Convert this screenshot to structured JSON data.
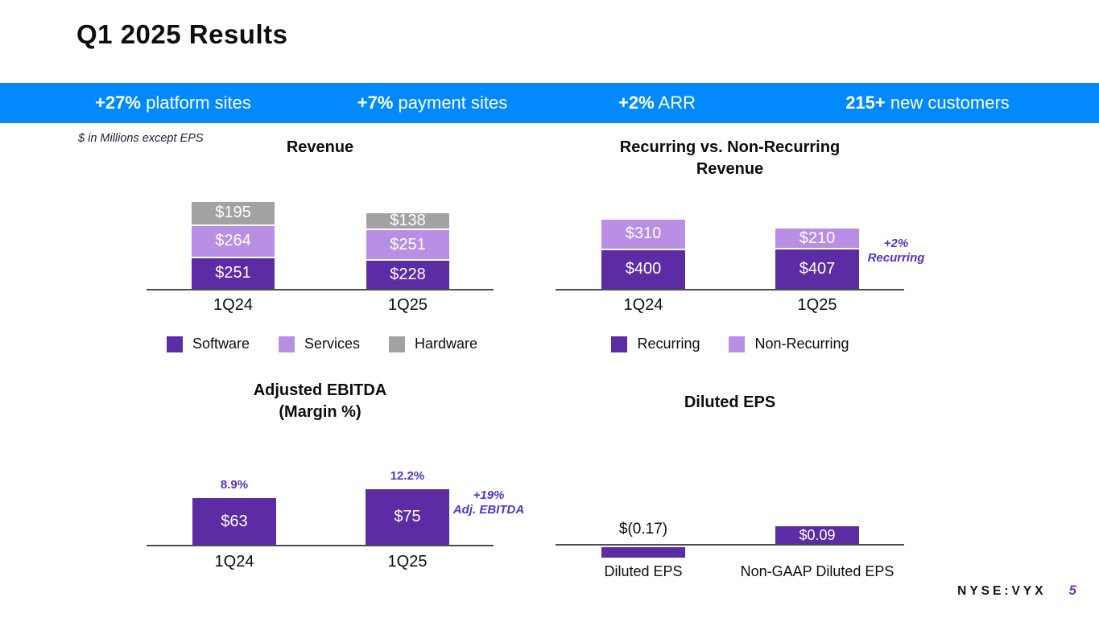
{
  "slide": {
    "title": "Q1 2025 Results",
    "note": "$ in Millions except EPS",
    "footer": {
      "ticker": "NYSE:VYX",
      "page": "5"
    }
  },
  "banner": {
    "stats": [
      {
        "value": "+27%",
        "label": "platform sites"
      },
      {
        "value": "+7%",
        "label": "payment sites"
      },
      {
        "value": "+2%",
        "label": "ARR"
      },
      {
        "value": "215+",
        "label": "new customers"
      }
    ]
  },
  "colors": {
    "banner_blue": "#0289FC",
    "dark_purple": "#5B2CA3",
    "light_purple": "#B88FE4",
    "gray": "#A4A1A4",
    "annotation_purple": "#5633C0",
    "page_purple": "#6F3CB4",
    "axis_gray": "#4D4D4D"
  },
  "chart_data": [
    {
      "type": "stacked-bar",
      "title_lines": [
        "Revenue"
      ],
      "categories": [
        "1Q24",
        "1Q25"
      ],
      "series": [
        {
          "name": "Software",
          "color_key": "dark_purple",
          "values": [
            251,
            228
          ],
          "labels": [
            "$251",
            "$228"
          ]
        },
        {
          "name": "Services",
          "color_key": "light_purple",
          "values": [
            264,
            251
          ],
          "labels": [
            "$264",
            "$251"
          ]
        },
        {
          "name": "Hardware",
          "color_key": "gray",
          "values": [
            195,
            138
          ],
          "labels": [
            "$195",
            "$138"
          ]
        }
      ],
      "legend": [
        "Software",
        "Services",
        "Hardware"
      ]
    },
    {
      "type": "stacked-bar",
      "title_lines": [
        "Recurring vs. Non-Recurring",
        "Revenue"
      ],
      "categories": [
        "1Q24",
        "1Q25"
      ],
      "series": [
        {
          "name": "Recurring",
          "color_key": "dark_purple",
          "values": [
            400,
            407
          ],
          "labels": [
            "$400",
            "$407"
          ]
        },
        {
          "name": "Non-Recurring",
          "color_key": "light_purple",
          "values": [
            310,
            210
          ],
          "labels": [
            "$310",
            "$210"
          ]
        }
      ],
      "legend": [
        "Recurring",
        "Non-Recurring"
      ],
      "annotation": "+2%\nRecurring"
    },
    {
      "type": "bar",
      "title_lines": [
        "Adjusted EBITDA",
        "(Margin %)"
      ],
      "categories": [
        "1Q24",
        "1Q25"
      ],
      "values": [
        63,
        75
      ],
      "bar_labels": [
        "$63",
        "$75"
      ],
      "top_labels": [
        "8.9%",
        "12.2%"
      ],
      "annotation": "+19%\nAdj. EBITDA"
    },
    {
      "type": "bar",
      "title_lines": [
        "Diluted EPS"
      ],
      "categories": [
        "Diluted EPS",
        "Non-GAAP Diluted EPS"
      ],
      "values": [
        -0.17,
        0.09
      ],
      "bar_labels": [
        "$(0.17)",
        "$0.09"
      ]
    }
  ]
}
